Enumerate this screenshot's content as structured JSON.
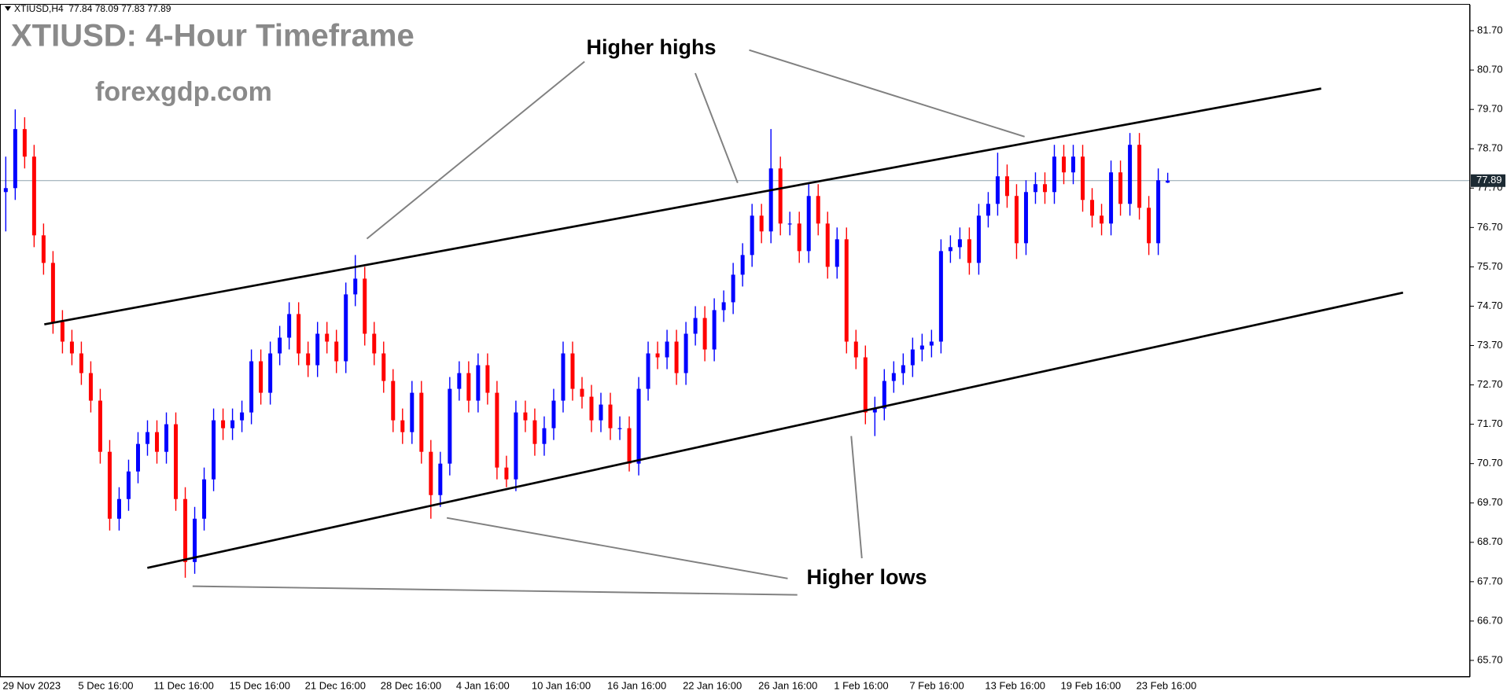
{
  "chart_data": {
    "type": "candlestick",
    "header": "XTIUSD,H4  77.84 78.09 77.83 77.89",
    "title": "XTIUSD: 4-Hour Timeframe",
    "subtitle": "forexgdp.com",
    "annotations": [
      "Higher highs",
      "Higher lows"
    ],
    "up_color": "#0000ff",
    "down_color": "#ff0000",
    "last_price": 77.89,
    "last_price_color": "#8fa3ad",
    "ylim": [
      65.28,
      82.36
    ],
    "yticks": [
      {
        "value": 65.7,
        "label": "65.70"
      },
      {
        "value": 66.7,
        "label": "66.70"
      },
      {
        "value": 67.7,
        "label": "67.70"
      },
      {
        "value": 68.7,
        "label": "68.70"
      },
      {
        "value": 69.7,
        "label": "69.70"
      },
      {
        "value": 70.7,
        "label": "70.70"
      },
      {
        "value": 71.7,
        "label": "71.70"
      },
      {
        "value": 72.7,
        "label": "72.70"
      },
      {
        "value": 73.7,
        "label": "73.70"
      },
      {
        "value": 74.7,
        "label": "74.70"
      },
      {
        "value": 75.7,
        "label": "75.70"
      },
      {
        "value": 76.7,
        "label": "76.70"
      },
      {
        "value": 77.7,
        "label": "77.70"
      },
      {
        "value": 78.7,
        "label": "78.70"
      },
      {
        "value": 79.7,
        "label": "79.70"
      },
      {
        "value": 80.7,
        "label": "80.70"
      },
      {
        "value": 81.7,
        "label": "81.70"
      }
    ],
    "categories": [
      "29 Nov 2023",
      null,
      null,
      null,
      null,
      null,
      null,
      null,
      "5 Dec 16:00",
      null,
      null,
      null,
      null,
      null,
      null,
      null,
      "11 Dec 16:00",
      null,
      null,
      null,
      null,
      null,
      null,
      null,
      "15 Dec 16:00",
      null,
      null,
      null,
      null,
      null,
      null,
      null,
      "21 Dec 16:00",
      null,
      null,
      null,
      null,
      null,
      null,
      null,
      "28 Dec 16:00",
      null,
      null,
      null,
      null,
      null,
      null,
      null,
      "4 Jan 16:00",
      null,
      null,
      null,
      null,
      null,
      null,
      null,
      "10 Jan 16:00",
      null,
      null,
      null,
      null,
      null,
      null,
      null,
      "16 Jan 16:00",
      null,
      null,
      null,
      null,
      null,
      null,
      null,
      "22 Jan 16:00",
      null,
      null,
      null,
      null,
      null,
      null,
      null,
      "26 Jan 16:00",
      null,
      null,
      null,
      null,
      null,
      null,
      null,
      "1 Feb 16:00",
      null,
      null,
      null,
      null,
      null,
      null,
      null,
      "7 Feb 16:00",
      null,
      null,
      null,
      null,
      null,
      null,
      null,
      "13 Feb 16:00",
      null,
      null,
      null,
      null,
      null,
      null,
      null,
      "19 Feb 16:00",
      null,
      null,
      null,
      null,
      null,
      null,
      null,
      "23 Feb 16:00",
      null,
      null,
      null
    ],
    "ohlc": [
      [
        77.6,
        78.5,
        76.6,
        77.7
      ],
      [
        77.7,
        79.7,
        77.4,
        79.2
      ],
      [
        79.2,
        79.5,
        78.2,
        78.5
      ],
      [
        78.5,
        78.8,
        76.2,
        76.5
      ],
      [
        76.5,
        76.8,
        75.5,
        75.8
      ],
      [
        75.8,
        76.1,
        74.0,
        74.3
      ],
      [
        74.3,
        74.6,
        73.5,
        73.8
      ],
      [
        73.8,
        74.1,
        73.2,
        73.5
      ],
      [
        73.5,
        73.8,
        72.7,
        73.0
      ],
      [
        73.0,
        73.3,
        72.0,
        72.3
      ],
      [
        72.3,
        72.6,
        70.7,
        71.0
      ],
      [
        71.0,
        71.3,
        69.0,
        69.3
      ],
      [
        69.3,
        70.1,
        69.0,
        69.8
      ],
      [
        69.8,
        70.8,
        69.5,
        70.5
      ],
      [
        70.5,
        71.5,
        70.2,
        71.2
      ],
      [
        71.2,
        71.8,
        70.9,
        71.5
      ],
      [
        71.5,
        71.8,
        70.7,
        71.0
      ],
      [
        71.0,
        72.0,
        70.7,
        71.7
      ],
      [
        71.7,
        72.0,
        69.5,
        69.8
      ],
      [
        69.8,
        70.1,
        67.8,
        68.2
      ],
      [
        68.2,
        69.6,
        67.9,
        69.3
      ],
      [
        69.3,
        70.6,
        69.0,
        70.3
      ],
      [
        70.3,
        72.1,
        70.0,
        71.8
      ],
      [
        71.8,
        72.1,
        71.3,
        71.6
      ],
      [
        71.6,
        72.1,
        71.3,
        71.8
      ],
      [
        71.8,
        72.3,
        71.5,
        72.0
      ],
      [
        72.0,
        73.6,
        71.7,
        73.3
      ],
      [
        73.3,
        73.6,
        72.2,
        72.5
      ],
      [
        72.5,
        73.8,
        72.2,
        73.5
      ],
      [
        73.5,
        74.2,
        73.2,
        73.9
      ],
      [
        73.9,
        74.8,
        73.6,
        74.5
      ],
      [
        74.5,
        74.8,
        73.2,
        73.5
      ],
      [
        73.5,
        73.8,
        72.9,
        73.2
      ],
      [
        73.2,
        74.3,
        72.9,
        74.0
      ],
      [
        74.0,
        74.3,
        73.5,
        73.8
      ],
      [
        73.8,
        74.1,
        73.0,
        73.3
      ],
      [
        73.3,
        75.3,
        73.0,
        75.0
      ],
      [
        75.0,
        76.0,
        74.7,
        75.4
      ],
      [
        75.4,
        75.7,
        73.7,
        74.0
      ],
      [
        74.0,
        74.3,
        73.2,
        73.5
      ],
      [
        73.5,
        73.8,
        72.5,
        72.8
      ],
      [
        72.8,
        73.1,
        71.5,
        71.8
      ],
      [
        71.8,
        72.1,
        71.2,
        71.5
      ],
      [
        71.5,
        72.8,
        71.2,
        72.5
      ],
      [
        72.5,
        72.8,
        70.7,
        71.0
      ],
      [
        71.0,
        71.3,
        69.3,
        69.9
      ],
      [
        69.9,
        71.0,
        69.6,
        70.7
      ],
      [
        70.7,
        72.9,
        70.4,
        72.6
      ],
      [
        72.6,
        73.3,
        72.3,
        73.0
      ],
      [
        73.0,
        73.3,
        72.0,
        72.3
      ],
      [
        72.3,
        73.5,
        72.0,
        73.2
      ],
      [
        73.2,
        73.5,
        72.2,
        72.5
      ],
      [
        72.5,
        72.8,
        70.3,
        70.6
      ],
      [
        70.6,
        70.9,
        70.1,
        70.3
      ],
      [
        70.3,
        72.3,
        70.0,
        72.0
      ],
      [
        72.0,
        72.3,
        71.5,
        71.8
      ],
      [
        71.8,
        72.1,
        70.9,
        71.2
      ],
      [
        71.2,
        71.9,
        70.9,
        71.6
      ],
      [
        71.6,
        72.6,
        71.3,
        72.3
      ],
      [
        72.3,
        73.8,
        72.0,
        73.5
      ],
      [
        73.5,
        73.8,
        72.3,
        72.6
      ],
      [
        72.6,
        72.9,
        72.1,
        72.4
      ],
      [
        72.4,
        72.7,
        71.5,
        71.8
      ],
      [
        71.8,
        72.5,
        71.5,
        72.2
      ],
      [
        72.2,
        72.5,
        71.3,
        71.6
      ],
      [
        71.6,
        71.9,
        71.3,
        71.6
      ],
      [
        71.6,
        71.9,
        70.5,
        70.7
      ],
      [
        70.7,
        72.9,
        70.4,
        72.6
      ],
      [
        72.6,
        73.8,
        72.3,
        73.5
      ],
      [
        73.5,
        73.8,
        73.1,
        73.4
      ],
      [
        73.4,
        74.1,
        73.1,
        73.8
      ],
      [
        73.8,
        74.1,
        72.7,
        73.0
      ],
      [
        73.0,
        74.3,
        72.7,
        74.0
      ],
      [
        74.0,
        74.7,
        73.7,
        74.4
      ],
      [
        74.4,
        74.7,
        73.3,
        73.6
      ],
      [
        73.6,
        74.9,
        73.3,
        74.6
      ],
      [
        74.6,
        75.1,
        74.3,
        74.8
      ],
      [
        74.8,
        75.8,
        74.5,
        75.5
      ],
      [
        75.5,
        76.3,
        75.2,
        76.0
      ],
      [
        76.0,
        77.3,
        75.7,
        77.0
      ],
      [
        77.0,
        77.3,
        76.3,
        76.6
      ],
      [
        76.6,
        79.2,
        76.3,
        78.2
      ],
      [
        78.2,
        78.5,
        76.5,
        76.8
      ],
      [
        76.8,
        77.1,
        76.5,
        76.8
      ],
      [
        76.8,
        77.1,
        75.8,
        76.1
      ],
      [
        76.1,
        77.8,
        75.8,
        77.5
      ],
      [
        77.5,
        77.8,
        76.5,
        76.8
      ],
      [
        76.8,
        77.1,
        75.4,
        75.7
      ],
      [
        75.7,
        76.7,
        75.4,
        76.4
      ],
      [
        76.4,
        76.7,
        73.5,
        73.8
      ],
      [
        73.8,
        74.1,
        73.1,
        73.4
      ],
      [
        73.4,
        73.7,
        71.7,
        72.0
      ],
      [
        72.0,
        72.4,
        71.4,
        72.1
      ],
      [
        72.1,
        73.1,
        71.8,
        72.8
      ],
      [
        72.8,
        73.3,
        72.5,
        73.0
      ],
      [
        73.0,
        73.5,
        72.7,
        73.2
      ],
      [
        73.2,
        73.9,
        72.9,
        73.6
      ],
      [
        73.6,
        74.0,
        73.3,
        73.7
      ],
      [
        73.7,
        74.1,
        73.4,
        73.8
      ],
      [
        73.8,
        76.4,
        73.5,
        76.1
      ],
      [
        76.1,
        76.5,
        75.8,
        76.2
      ],
      [
        76.2,
        76.7,
        75.9,
        76.4
      ],
      [
        76.4,
        76.7,
        75.5,
        75.8
      ],
      [
        75.8,
        77.3,
        75.5,
        77.0
      ],
      [
        77.0,
        77.6,
        76.7,
        77.3
      ],
      [
        77.3,
        78.6,
        77.0,
        78.0
      ],
      [
        78.0,
        78.3,
        77.2,
        77.5
      ],
      [
        77.5,
        77.8,
        75.9,
        76.3
      ],
      [
        76.3,
        77.9,
        76.0,
        77.6
      ],
      [
        77.6,
        78.1,
        77.3,
        77.8
      ],
      [
        77.8,
        78.1,
        77.3,
        77.6
      ],
      [
        77.6,
        78.8,
        77.3,
        78.5
      ],
      [
        78.5,
        78.8,
        77.8,
        78.1
      ],
      [
        78.1,
        78.8,
        77.8,
        78.5
      ],
      [
        78.5,
        78.8,
        77.1,
        77.4
      ],
      [
        77.4,
        77.7,
        76.7,
        77.0
      ],
      [
        77.0,
        77.3,
        76.5,
        76.8
      ],
      [
        76.8,
        78.4,
        76.5,
        78.1
      ],
      [
        78.1,
        78.4,
        77.0,
        77.3
      ],
      [
        77.3,
        79.1,
        77.0,
        78.8
      ],
      [
        78.8,
        79.1,
        76.9,
        77.2
      ],
      [
        77.2,
        77.5,
        76.0,
        76.3
      ],
      [
        76.3,
        78.2,
        76.0,
        77.9
      ],
      [
        77.84,
        78.09,
        77.83,
        77.89
      ]
    ]
  }
}
